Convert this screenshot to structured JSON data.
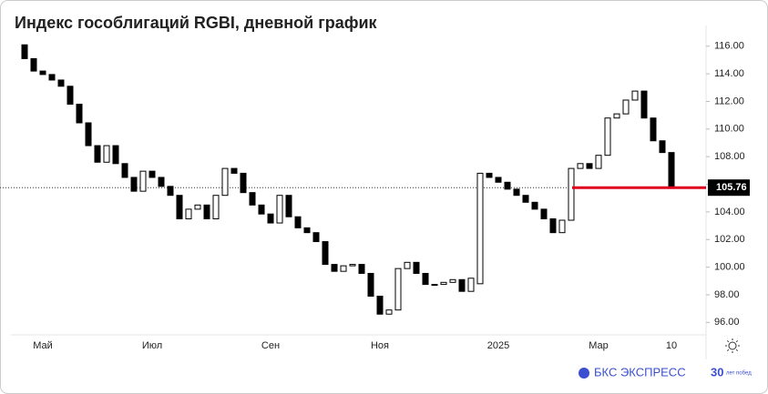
{
  "chart_data": {
    "type": "candlestick",
    "title": "Индекс гособлигаций RGBI, дневной график",
    "categories": [
      null,
      null,
      "Май",
      null,
      null,
      null,
      null,
      null,
      null,
      null,
      null,
      null,
      null,
      null,
      "Июл",
      null,
      null,
      null,
      null,
      null,
      null,
      null,
      null,
      null,
      null,
      null,
      null,
      "Сен",
      null,
      null,
      null,
      null,
      null,
      null,
      null,
      null,
      null,
      null,
      null,
      "Ноя",
      null,
      null,
      null,
      null,
      null,
      null,
      null,
      null,
      null,
      null,
      null,
      null,
      "2025",
      null,
      null,
      null,
      null,
      null,
      null,
      null,
      null,
      null,
      null,
      "Мар",
      null,
      null,
      null,
      null,
      null,
      null,
      null,
      "10"
    ],
    "open": [
      116.1,
      115.1,
      114.2,
      113.95,
      113.55,
      113.1,
      111.8,
      110.45,
      108.8,
      107.6,
      108.8,
      107.5,
      106.5,
      105.5,
      106.95,
      106.5,
      105.85,
      105.2,
      103.5,
      104.2,
      104.5,
      103.5,
      105.2,
      107.15,
      106.8,
      105.4,
      104.5,
      103.85,
      103.2,
      105.2,
      103.65,
      102.85,
      102.5,
      101.85,
      100.2,
      99.7,
      100.1,
      100.2,
      99.55,
      97.9,
      96.6,
      96.9,
      99.9,
      100.35,
      99.55,
      98.75,
      98.75,
      98.9,
      99.1,
      98.25,
      98.8,
      106.8,
      106.5,
      106.15,
      105.65,
      105.2,
      104.7,
      104.2,
      103.5,
      102.5,
      103.4,
      107.15,
      107.5,
      107.15,
      108.1,
      110.8,
      111.1,
      112.1,
      112.75,
      110.8,
      109.15,
      108.3
    ],
    "close": [
      115.1,
      114.2,
      113.95,
      113.55,
      113.1,
      111.8,
      110.45,
      108.8,
      107.6,
      108.8,
      107.5,
      106.5,
      105.5,
      106.95,
      106.5,
      105.85,
      105.2,
      103.5,
      104.2,
      104.5,
      103.5,
      105.2,
      107.15,
      106.8,
      105.4,
      104.5,
      103.85,
      103.2,
      105.2,
      103.65,
      102.85,
      102.5,
      101.85,
      100.2,
      99.7,
      100.1,
      100.2,
      99.55,
      97.9,
      96.6,
      96.9,
      99.9,
      100.35,
      99.55,
      98.75,
      98.75,
      98.9,
      99.1,
      98.25,
      99.2,
      106.8,
      106.5,
      106.15,
      105.65,
      105.2,
      104.7,
      104.2,
      103.5,
      102.5,
      103.4,
      107.15,
      107.5,
      107.15,
      108.1,
      110.8,
      111.1,
      112.1,
      112.75,
      110.8,
      109.15,
      108.3,
      105.76
    ],
    "up_color": "#ffffff",
    "down_color": "#000000",
    "last_price": 105.76,
    "last_price_color": "#e0001b",
    "ylim": [
      95.1,
      117.5
    ],
    "yticks": [
      {
        "value": 96,
        "label": "96.00"
      },
      {
        "value": 98,
        "label": "98.00"
      },
      {
        "value": 100,
        "label": "100.00"
      },
      {
        "value": 102,
        "label": "102.00"
      },
      {
        "value": 104,
        "label": "104.00"
      },
      {
        "value": 106,
        "label": "106.00"
      },
      {
        "value": 108,
        "label": "108.00"
      },
      {
        "value": 110,
        "label": "110.00"
      },
      {
        "value": 112,
        "label": "112.00"
      },
      {
        "value": 114,
        "label": "114.00"
      },
      {
        "value": 116,
        "label": "116.00"
      }
    ],
    "brand": "БКС ЭКСПРЕСС",
    "badge": "30",
    "badge_text": "лет побед"
  }
}
